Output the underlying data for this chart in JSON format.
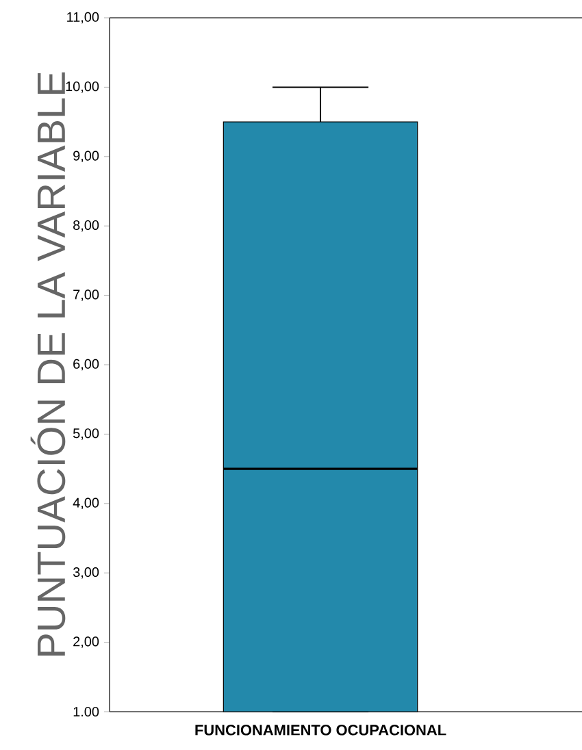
{
  "chart_data": {
    "type": "box",
    "ylabel": "PUNTUACIÓN DE LA VARIABLE",
    "categories": [
      "FUNCIONAMIENTO OCUPACIONAL"
    ],
    "boxes": [
      {
        "low": 1,
        "q1": 1,
        "median": 4.5,
        "q3": 9.5,
        "high": 10
      }
    ],
    "color": "#2389ab",
    "ylim": [
      1,
      11
    ],
    "yticks": [
      {
        "value": 1,
        "label": "1.00"
      },
      {
        "value": 2,
        "label": "2,00"
      },
      {
        "value": 3,
        "label": "3,00"
      },
      {
        "value": 4,
        "label": "4,00"
      },
      {
        "value": 5,
        "label": "5,00"
      },
      {
        "value": 6,
        "label": "6,00"
      },
      {
        "value": 7,
        "label": "7,00"
      },
      {
        "value": 8,
        "label": "8,00"
      },
      {
        "value": 9,
        "label": "9,00"
      },
      {
        "value": 10,
        "label": "10,00"
      },
      {
        "value": 11,
        "label": "11,00"
      }
    ]
  }
}
